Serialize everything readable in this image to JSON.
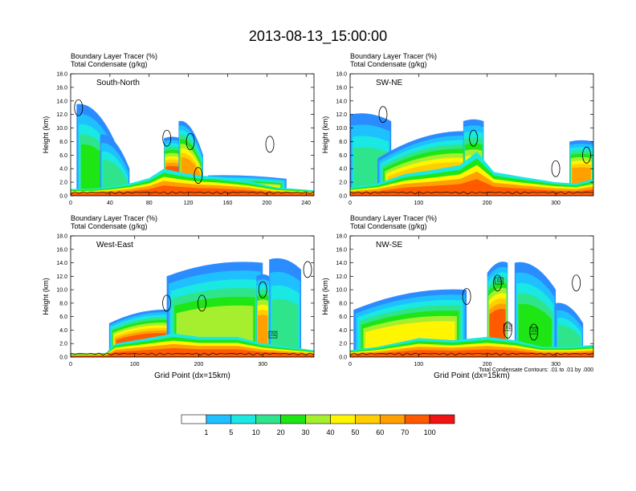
{
  "figure": {
    "title": "2013-08-13_15:00:00"
  },
  "colors": {
    "levels": [
      "#ffffff",
      "#2b8cff",
      "#1fc0ff",
      "#19e8e3",
      "#2ee58c",
      "#1ee614",
      "#a6ef2f",
      "#fff500",
      "#ffce00",
      "#ffa000",
      "#ff5a00",
      "#f01414"
    ],
    "contour": "#000000"
  },
  "colorbar": {
    "labels": [
      "1",
      "5",
      "10",
      "20",
      "30",
      "40",
      "50",
      "60",
      "70",
      "100"
    ]
  },
  "chart_data": [
    {
      "type": "heatmap",
      "panel_label": "South-North",
      "header_lines": [
        "Boundary Layer Tracer    (%)",
        "Total Condensate    (g/kg)"
      ],
      "ylabel": "Height (km)",
      "xlabel": "",
      "ylim": [
        0,
        18
      ],
      "xlim": [
        0,
        248
      ],
      "xticks": [
        "0",
        "40",
        "80",
        "120",
        "160",
        "200",
        "240"
      ],
      "xtick_values": [
        0,
        40,
        80,
        120,
        160,
        200,
        240
      ],
      "yticks": [
        "0.0",
        "2.0",
        "4.0",
        "6.0",
        "8.0",
        "10.0",
        "12.0",
        "14.0",
        "16.0",
        "18.0"
      ],
      "boundary_layer_depth": [
        [
          0,
          1.0
        ],
        [
          20,
          1.0
        ],
        [
          40,
          1.3
        ],
        [
          60,
          1.8
        ],
        [
          80,
          2.6
        ],
        [
          95,
          4.0
        ],
        [
          110,
          3.5
        ],
        [
          130,
          3.0
        ],
        [
          150,
          2.8
        ],
        [
          180,
          2.2
        ],
        [
          210,
          1.2
        ],
        [
          230,
          1.0
        ],
        [
          248,
          0.8
        ]
      ],
      "plumes": [
        {
          "x": [
            6,
            55
          ],
          "top": [
            13.5,
            4.5
          ],
          "peak": 30
        },
        {
          "x": [
            30,
            60
          ],
          "top": [
            9.0,
            4.0
          ],
          "peak": 20
        },
        {
          "x": [
            95,
            112
          ],
          "top": [
            8.5,
            8.5
          ],
          "peak": 100
        },
        {
          "x": [
            110,
            135
          ],
          "top": [
            11.0,
            6.0
          ],
          "peak": 70
        },
        {
          "x": [
            140,
            220
          ],
          "top": [
            3.0,
            2.5
          ],
          "peak": 60
        }
      ],
      "condensate_contours": [
        {
          "x": 8,
          "y": 13.0
        },
        {
          "x": 98,
          "y": 8.5
        },
        {
          "x": 122,
          "y": 8.0
        },
        {
          "x": 203,
          "y": 7.6
        },
        {
          "x": 130,
          "y": 3.0
        }
      ],
      "annotations": []
    },
    {
      "type": "heatmap",
      "panel_label": "SW-NE",
      "header_lines": [
        "Boundary Layer Tracer    (%)",
        "Total Condensate    (g/kg)"
      ],
      "ylabel": "Height (km)",
      "xlabel": "",
      "ylim": [
        0,
        18
      ],
      "xlim": [
        0,
        355
      ],
      "xticks": [
        "0",
        "100",
        "200",
        "300"
      ],
      "xtick_values": [
        0,
        100,
        200,
        300
      ],
      "yticks": [
        "0.0",
        "2.0",
        "4.0",
        "6.0",
        "8.0",
        "10.0",
        "12.0",
        "14.0",
        "16.0",
        "18.0"
      ],
      "boundary_layer_depth": [
        [
          0,
          1.2
        ],
        [
          40,
          1.8
        ],
        [
          80,
          3.2
        ],
        [
          120,
          3.8
        ],
        [
          160,
          4.5
        ],
        [
          185,
          6.5
        ],
        [
          210,
          3.5
        ],
        [
          250,
          2.8
        ],
        [
          300,
          2.0
        ],
        [
          330,
          1.8
        ],
        [
          355,
          2.5
        ]
      ],
      "plumes": [
        {
          "x": [
            0,
            60
          ],
          "top": [
            12.0,
            11.0
          ],
          "peak": 20
        },
        {
          "x": [
            40,
            180
          ],
          "top": [
            5.5,
            9.5
          ],
          "peak": 60
        },
        {
          "x": [
            165,
            195
          ],
          "top": [
            11.0,
            11.0
          ],
          "peak": 50
        },
        {
          "x": [
            320,
            355
          ],
          "top": [
            8.0,
            8.0
          ],
          "peak": 70
        }
      ],
      "condensate_contours": [
        {
          "x": 48,
          "y": 12.0
        },
        {
          "x": 180,
          "y": 8.5
        },
        {
          "x": 300,
          "y": 4.0
        },
        {
          "x": 345,
          "y": 6.0
        }
      ],
      "annotations": []
    },
    {
      "type": "heatmap",
      "panel_label": "West-East",
      "header_lines": [
        "Boundary Layer Tracer    (%)",
        "Total Condensate    (g/kg)"
      ],
      "ylabel": "Height (km)",
      "xlabel": "Grid Point (dx=15km)",
      "ylim": [
        0,
        18
      ],
      "xlim": [
        0,
        380
      ],
      "xticks": [
        "0",
        "100",
        "200",
        "300"
      ],
      "xtick_values": [
        0,
        100,
        200,
        300
      ],
      "yticks": [
        "0.0",
        "2.0",
        "4.0",
        "6.0",
        "8.0",
        "10.0",
        "12.0",
        "14.0",
        "16.0",
        "18.0"
      ],
      "boundary_layer_depth": [
        [
          0,
          0.5
        ],
        [
          55,
          0.6
        ],
        [
          70,
          2.0
        ],
        [
          120,
          2.8
        ],
        [
          160,
          3.5
        ],
        [
          200,
          3.0
        ],
        [
          260,
          3.0
        ],
        [
          300,
          2.0
        ],
        [
          340,
          1.5
        ],
        [
          380,
          1.0
        ]
      ],
      "plumes": [
        {
          "x": [
            60,
            160
          ],
          "top": [
            5.0,
            7.0
          ],
          "peak": 100
        },
        {
          "x": [
            150,
            300
          ],
          "top": [
            12.0,
            14.0
          ],
          "peak": 40
        },
        {
          "x": [
            290,
            310
          ],
          "top": [
            12.0,
            12.0
          ],
          "peak": 70
        },
        {
          "x": [
            310,
            360
          ],
          "top": [
            14.5,
            13.0
          ],
          "peak": 20
        }
      ],
      "condensate_contours": [
        {
          "x": 150,
          "y": 8.0
        },
        {
          "x": 205,
          "y": 8.0
        },
        {
          "x": 300,
          "y": 10.0
        },
        {
          "x": 370,
          "y": 13.0
        }
      ],
      "annotations": [
        {
          "text": ".01",
          "x": 316,
          "y": 3.2
        }
      ]
    },
    {
      "type": "heatmap",
      "panel_label": "NW-SE",
      "header_lines": [
        "Boundary Layer Tracer    (%)",
        "Total Condensate    (g/kg)"
      ],
      "ylabel": "Height (km)",
      "xlabel": "Grid Point (dx=15km)",
      "ylim": [
        0,
        18
      ],
      "xlim": [
        0,
        355
      ],
      "xticks": [
        "0",
        "100",
        "200",
        "300"
      ],
      "xtick_values": [
        0,
        100,
        200,
        300
      ],
      "yticks": [
        "0.0",
        "2.0",
        "4.0",
        "6.0",
        "8.0",
        "10.0",
        "12.0",
        "14.0",
        "16.0",
        "18.0"
      ],
      "boundary_layer_depth": [
        [
          0,
          1.0
        ],
        [
          40,
          1.5
        ],
        [
          100,
          2.8
        ],
        [
          150,
          2.5
        ],
        [
          200,
          3.0
        ],
        [
          240,
          2.5
        ],
        [
          280,
          1.5
        ],
        [
          320,
          1.5
        ],
        [
          355,
          1.8
        ]
      ],
      "plumes": [
        {
          "x": [
            5,
            170
          ],
          "top": [
            7.0,
            10.0
          ],
          "peak": 50
        },
        {
          "x": [
            200,
            230
          ],
          "top": [
            12.5,
            14.0
          ],
          "peak": 100
        },
        {
          "x": [
            240,
            300
          ],
          "top": [
            14.0,
            10.0
          ],
          "peak": 30
        },
        {
          "x": [
            300,
            340
          ],
          "top": [
            8.0,
            5.0
          ],
          "peak": 20
        }
      ],
      "condensate_contours": [
        {
          "x": 170,
          "y": 9.0
        },
        {
          "x": 215,
          "y": 11.0
        },
        {
          "x": 330,
          "y": 11.0
        },
        {
          "x": 230,
          "y": 4.0
        },
        {
          "x": 268,
          "y": 3.7
        }
      ],
      "annotations": [
        {
          "text": ".01",
          "x": 217,
          "y": 11.2
        },
        {
          "text": ".01",
          "x": 230,
          "y": 4.3
        },
        {
          "text": ".01",
          "x": 268,
          "y": 3.8
        }
      ],
      "footnote": "Total Condensate Contours: .01 to .01 by .000"
    }
  ]
}
